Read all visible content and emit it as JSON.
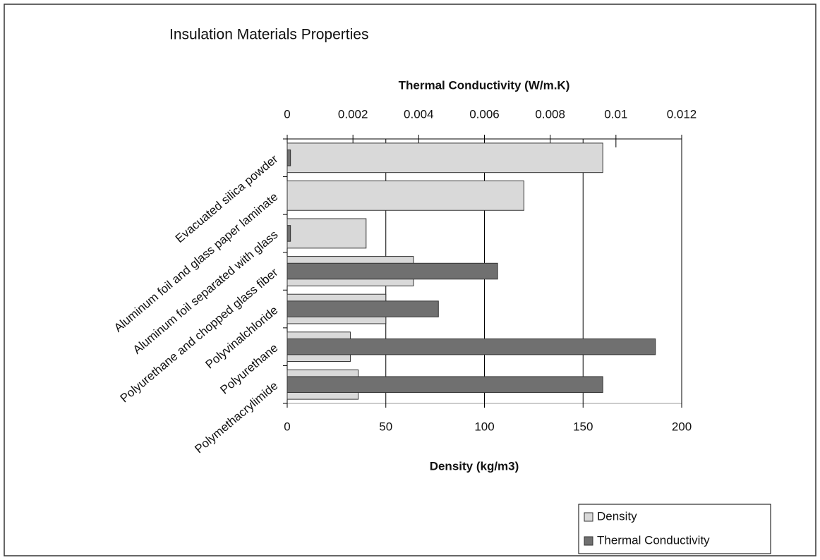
{
  "chart_data": {
    "type": "bar",
    "title": "Insulation Materials Properties",
    "xlabel": "Density (kg/m3)",
    "x2label": "Thermal Conductivity (W/m.K)",
    "categories": [
      "Evacuated silica powder",
      "Aluminum foil and glass paper laminate",
      "Aluminum foil separated with glass",
      "Polyurethane and chopped glass fiber",
      "Polyvinalchloride",
      "Polyurethane",
      "Polymethacrylimide"
    ],
    "series": [
      {
        "name": "Density",
        "color": "#d9d9d9",
        "values": [
          160,
          120,
          40,
          64,
          50,
          32,
          36
        ]
      },
      {
        "name": "Thermal Conductivity",
        "color": "#707070",
        "axis": "x2",
        "values": [
          0.0001,
          null,
          0.0001,
          0.0064,
          0.0046,
          0.0112,
          0.0096
        ]
      }
    ],
    "xlim": [
      0,
      200
    ],
    "xticks": [
      0,
      50,
      100,
      150,
      200
    ],
    "x2lim": [
      0,
      0.012
    ],
    "x2ticks": [
      0,
      0.002,
      0.004,
      0.006,
      0.008,
      0.01,
      0.012
    ],
    "grid": true,
    "legend": "bottom-right"
  }
}
